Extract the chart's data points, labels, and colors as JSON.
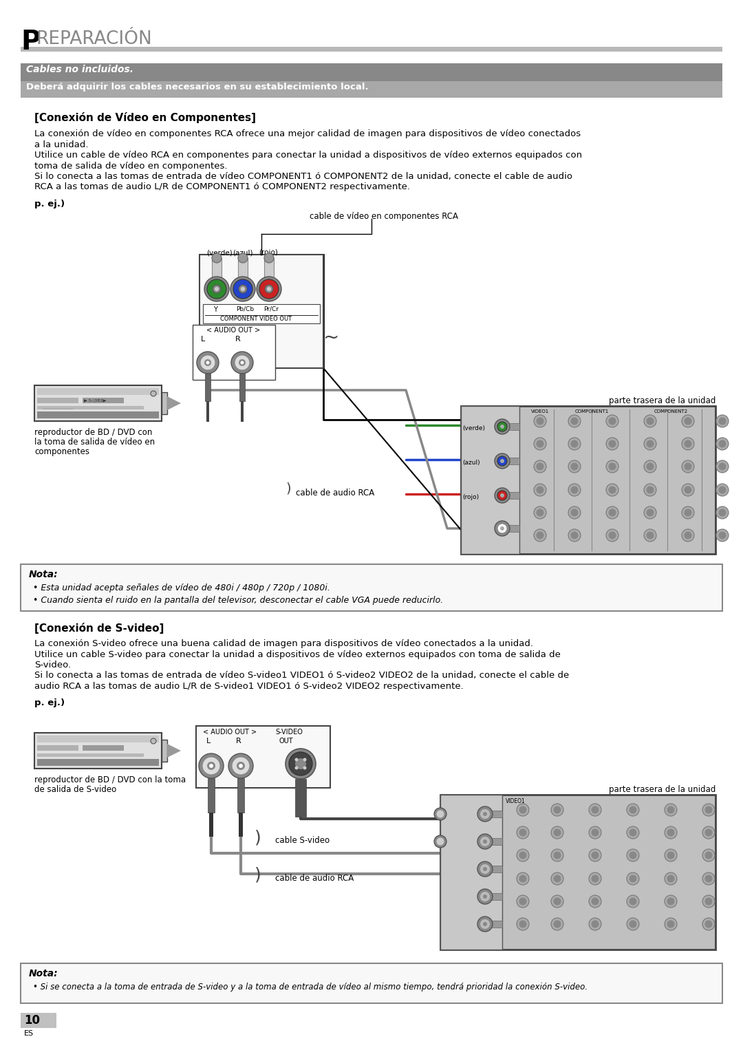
{
  "title_P": "P",
  "title_rest": "REPARACIÓN",
  "cables_no_incluidos": "Cables no incluidos.",
  "debe_adquirir": "Deberá adquirir los cables necesarios en su establecimiento local.",
  "section1_title": "[Conexión de Vídeo en Componentes]",
  "section1_body_lines": [
    "La conexión de vídeo en componentes RCA ofrece una mejor calidad de imagen para dispositivos de vídeo conectados",
    "a la unidad.",
    "Utilice un cable de vídeo RCA en componentes para conectar la unidad a dispositivos de vídeo externos equipados con",
    "toma de salida de vídeo en componentes.",
    "Si lo conecta a las tomas de entrada de vídeo COMPONENT1 ó COMPONENT2 de la unidad, conecte el cable de audio",
    "RCA a las tomas de audio L/R de COMPONENT1 ó COMPONENT2 respectivamente."
  ],
  "pej1": "p. ej.)",
  "cable_video_label": "cable de vídeo en componentes RCA",
  "verde": "(verde)",
  "azul": "(azul)",
  "rojo": "(rojo)",
  "Y_label": "Y",
  "PbCb_label": "Pb/Cb",
  "PrCr_label": "Pr/Cr",
  "comp_video_out": "COMPONENT VIDEO OUT",
  "audio_out_L": "AUDIO OUT",
  "L_label": "L",
  "R_label": "R",
  "bd_dvd_label1": [
    "reproductor de BD / DVD con",
    "la toma de salida de vídeo en",
    "componentes"
  ],
  "parte_trasera1": "parte trasera de la unidad",
  "cable_audio_rca1": "cable de audio RCA",
  "nota1_title": "Nota:",
  "nota1_b1": "Esta unidad acepta señales de vídeo de 480i / 480p / 720p / 1080i.",
  "nota1_b2": "Cuando sienta el ruido en la pantalla del televisor, desconectar el cable VGA puede reducirlo.",
  "section2_title": "[Conexión de S-video]",
  "section2_body_lines": [
    "La conexión S-video ofrece una buena calidad de imagen para dispositivos de vídeo conectados a la unidad.",
    "Utilice un cable S-video para conectar la unidad a dispositivos de vídeo externos equipados con toma de salida de",
    "S-video.",
    "Si lo conecta a las tomas de entrada de vídeo S-video1 VIDEO1 ó S-video2 VIDEO2 de la unidad, conecte el cable de",
    "audio RCA a las tomas de audio L/R de S-video1 VIDEO1 ó S-video2 VIDEO2 respectivamente."
  ],
  "pej2": "p. ej.)",
  "bd_dvd_label2": [
    "reproductor de BD / DVD con la toma",
    "de salida de S-video"
  ],
  "audio_out2": "AUDIO OUT",
  "svideo_out_l1": "S-VIDEO",
  "svideo_out_l2": "OUT",
  "parte_trasera2": "parte trasera de la unidad",
  "cable_svideo": "cable S-video",
  "cable_audio_rca2": "cable de audio RCA",
  "nota2_title": "Nota:",
  "nota2_bullet": "Si se conecta a la toma de entrada de S-video y a la toma de entrada de vídeo al mismo tiempo, tendrá prioridad la conexión S-video.",
  "page_num": "10",
  "lang": "ES"
}
